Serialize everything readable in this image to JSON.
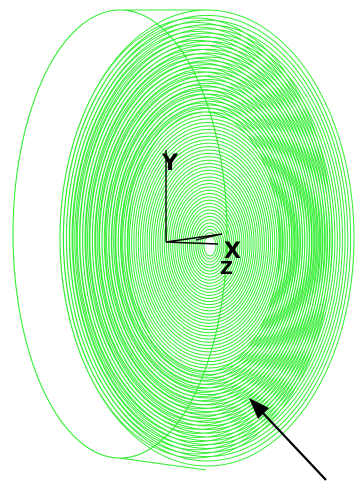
{
  "colors": {
    "background": "#ffffff",
    "spiral_stroke": "#33ee33",
    "axis_stroke": "#000000",
    "arrow_stroke": "#000000"
  },
  "axes": {
    "y_label": "Y",
    "x_label": "X",
    "z_label": "Z"
  },
  "icons": {
    "spiral": "spiral-coil-icon",
    "arrow": "pointer-arrow-icon"
  }
}
